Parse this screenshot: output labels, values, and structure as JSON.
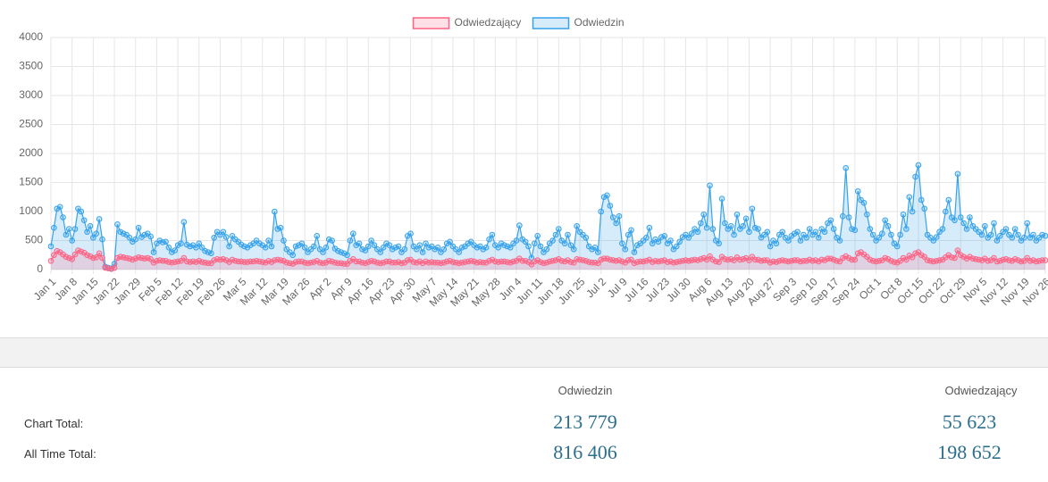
{
  "chart_data": {
    "type": "line",
    "fill": true,
    "grid": true,
    "legend": "top",
    "categories": [
      "Jan 1",
      null,
      null,
      null,
      null,
      null,
      null,
      "Jan 8",
      null,
      null,
      null,
      null,
      null,
      null,
      "Jan 15",
      null,
      null,
      null,
      null,
      null,
      null,
      "Jan 22",
      null,
      null,
      null,
      null,
      null,
      null,
      "Jan 29",
      null,
      null,
      null,
      null,
      null,
      null,
      "Feb 5",
      null,
      null,
      null,
      null,
      null,
      null,
      "Feb 12",
      null,
      null,
      null,
      null,
      null,
      null,
      "Feb 19",
      null,
      null,
      null,
      null,
      null,
      null,
      "Feb 26",
      null,
      null,
      null,
      null,
      null,
      null,
      "Mar 5",
      null,
      null,
      null,
      null,
      null,
      null,
      "Mar 12",
      null,
      null,
      null,
      null,
      null,
      null,
      "Mar 19",
      null,
      null,
      null,
      null,
      null,
      null,
      "Mar 26",
      null,
      null,
      null,
      null,
      null,
      null,
      "Apr 2",
      null,
      null,
      null,
      null,
      null,
      null,
      "Apr 9",
      null,
      null,
      null,
      null,
      null,
      null,
      "Apr 16",
      null,
      null,
      null,
      null,
      null,
      null,
      "Apr 23",
      null,
      null,
      null,
      null,
      null,
      null,
      "Apr 30",
      null,
      null,
      null,
      null,
      null,
      null,
      "May 7",
      null,
      null,
      null,
      null,
      null,
      null,
      "May 14",
      null,
      null,
      null,
      null,
      null,
      null,
      "May 21",
      null,
      null,
      null,
      null,
      null,
      null,
      "May 28",
      null,
      null,
      null,
      null,
      null,
      null,
      "Jun 4",
      null,
      null,
      null,
      null,
      null,
      null,
      "Jun 11",
      null,
      null,
      null,
      null,
      null,
      null,
      "Jun 18",
      null,
      null,
      null,
      null,
      null,
      null,
      "Jun 25",
      null,
      null,
      null,
      null,
      null,
      null,
      "Jul 2",
      null,
      null,
      null,
      null,
      null,
      null,
      "Jul 9",
      null,
      null,
      null,
      null,
      null,
      null,
      "Jul 16",
      null,
      null,
      null,
      null,
      null,
      null,
      "Jul 23",
      null,
      null,
      null,
      null,
      null,
      null,
      "Jul 30",
      null,
      null,
      null,
      null,
      null,
      null,
      "Aug 6",
      null,
      null,
      null,
      null,
      null,
      null,
      "Aug 13",
      null,
      null,
      null,
      null,
      null,
      null,
      "Aug 20",
      null,
      null,
      null,
      null,
      null,
      null,
      "Aug 27",
      null,
      null,
      null,
      null,
      null,
      null,
      "Sep 3",
      null,
      null,
      null,
      null,
      null,
      null,
      "Sep 10",
      null,
      null,
      null,
      null,
      null,
      null,
      "Sep 17",
      null,
      null,
      null,
      null,
      null,
      null,
      "Sep 24",
      null,
      null,
      null,
      null,
      null,
      null,
      "Oct 1",
      null,
      null,
      null,
      null,
      null,
      null,
      "Oct 8",
      null,
      null,
      null,
      null,
      null,
      null,
      "Oct 15",
      null,
      null,
      null,
      null,
      null,
      null,
      "Oct 22",
      null,
      null,
      null,
      null,
      null,
      null,
      "Oct 29",
      null,
      null,
      null,
      null,
      null,
      null,
      "Nov 5",
      null,
      null,
      null,
      null,
      null,
      null,
      "Nov 12",
      null,
      null,
      null,
      null,
      null,
      null,
      "Nov 19",
      null,
      null,
      null,
      null,
      null,
      null,
      "Nov 26"
    ],
    "series": [
      {
        "name": "Odwiedzający",
        "color": "#ff6384",
        "values": [
          150,
          250,
          320,
          300,
          260,
          220,
          200,
          180,
          260,
          330,
          310,
          290,
          250,
          230,
          200,
          210,
          280,
          200,
          30,
          20,
          10,
          30,
          200,
          220,
          210,
          200,
          190,
          170,
          190,
          210,
          200,
          190,
          200,
          180,
          120,
          150,
          160,
          150,
          150,
          130,
          120,
          130,
          140,
          150,
          200,
          140,
          130,
          140,
          130,
          150,
          130,
          120,
          110,
          110,
          160,
          180,
          170,
          180,
          160,
          130,
          170,
          150,
          140,
          140,
          130,
          130,
          140,
          140,
          150,
          140,
          130,
          120,
          150,
          130,
          160,
          170,
          160,
          150,
          120,
          110,
          100,
          130,
          140,
          140,
          120,
          110,
          120,
          130,
          150,
          120,
          110,
          120,
          150,
          140,
          120,
          110,
          110,
          100,
          100,
          150,
          180,
          140,
          140,
          120,
          110,
          130,
          150,
          140,
          120,
          110,
          120,
          140,
          140,
          120,
          120,
          130,
          110,
          120,
          160,
          170,
          130,
          120,
          140,
          110,
          140,
          120,
          130,
          120,
          120,
          110,
          120,
          140,
          150,
          130,
          120,
          110,
          120,
          130,
          140,
          150,
          140,
          120,
          130,
          120,
          120,
          150,
          170,
          140,
          130,
          140,
          140,
          130,
          120,
          140,
          150,
          190,
          150,
          150,
          130,
          90,
          140,
          160,
          130,
          110,
          120,
          140,
          150,
          160,
          180,
          150,
          140,
          160,
          130,
          120,
          180,
          170,
          160,
          150,
          130,
          120,
          120,
          110,
          170,
          190,
          190,
          170,
          160,
          150,
          160,
          140,
          120,
          160,
          170,
          110,
          130,
          140,
          140,
          150,
          170,
          130,
          150,
          140,
          150,
          160,
          130,
          140,
          120,
          130,
          140,
          150,
          160,
          150,
          160,
          170,
          160,
          180,
          200,
          170,
          230,
          170,
          140,
          130,
          220,
          180,
          170,
          180,
          160,
          210,
          170,
          180,
          200,
          160,
          220,
          170,
          170,
          150,
          160,
          160,
          120,
          140,
          130,
          150,
          160,
          150,
          140,
          150,
          160,
          160,
          140,
          150,
          150,
          170,
          150,
          160,
          140,
          170,
          160,
          190,
          190,
          170,
          150,
          140,
          200,
          230,
          200,
          170,
          170,
          280,
          300,
          260,
          220,
          170,
          150,
          140,
          150,
          160,
          200,
          180,
          150,
          130,
          120,
          150,
          200,
          170,
          240,
          210,
          280,
          300,
          250,
          220,
          160,
          150,
          140,
          150,
          160,
          170,
          210,
          250,
          210,
          200,
          330,
          250,
          220,
          190,
          220,
          190,
          180,
          170,
          160,
          190,
          150,
          160,
          200,
          140,
          150,
          170,
          180,
          160,
          150,
          180,
          160,
          140,
          150,
          200,
          150,
          160,
          140,
          150,
          160,
          160
        ]
      },
      {
        "name": "Odwiedzin",
        "color": "#36a2eb",
        "values": [
          400,
          720,
          1050,
          1080,
          900,
          600,
          700,
          500,
          700,
          1050,
          1000,
          850,
          650,
          750,
          550,
          620,
          870,
          520,
          50,
          30,
          20,
          100,
          780,
          650,
          620,
          600,
          550,
          480,
          520,
          720,
          560,
          600,
          620,
          570,
          300,
          450,
          500,
          470,
          480,
          380,
          300,
          330,
          420,
          450,
          820,
          430,
          400,
          420,
          380,
          450,
          380,
          320,
          300,
          280,
          550,
          650,
          600,
          650,
          560,
          400,
          580,
          520,
          480,
          430,
          400,
          380,
          420,
          450,
          500,
          450,
          420,
          380,
          500,
          400,
          1000,
          700,
          720,
          500,
          350,
          300,
          250,
          400,
          420,
          450,
          380,
          300,
          350,
          400,
          580,
          350,
          300,
          380,
          520,
          500,
          360,
          320,
          300,
          280,
          250,
          500,
          620,
          420,
          450,
          350,
          330,
          400,
          500,
          420,
          350,
          300,
          380,
          450,
          420,
          350,
          380,
          400,
          300,
          350,
          580,
          620,
          400,
          350,
          420,
          300,
          450,
          380,
          400,
          350,
          380,
          300,
          350,
          450,
          480,
          400,
          350,
          300,
          380,
          400,
          450,
          480,
          420,
          380,
          400,
          350,
          380,
          520,
          600,
          420,
          380,
          450,
          420,
          400,
          380,
          450,
          500,
          760,
          520,
          480,
          400,
          200,
          450,
          580,
          400,
          300,
          350,
          450,
          500,
          600,
          700,
          500,
          450,
          600,
          420,
          350,
          750,
          650,
          600,
          550,
          400,
          350,
          380,
          300,
          1000,
          1250,
          1280,
          1100,
          900,
          800,
          920,
          450,
          350,
          600,
          680,
          300,
          420,
          450,
          500,
          550,
          720,
          450,
          520,
          480,
          560,
          580,
          450,
          500,
          350,
          400,
          480,
          560,
          600,
          550,
          620,
          700,
          650,
          800,
          950,
          720,
          1450,
          700,
          500,
          450,
          1220,
          800,
          700,
          750,
          600,
          950,
          700,
          750,
          880,
          650,
          1050,
          720,
          700,
          550,
          600,
          650,
          400,
          500,
          450,
          600,
          650,
          550,
          500,
          580,
          620,
          650,
          500,
          600,
          550,
          700,
          600,
          650,
          550,
          700,
          650,
          800,
          850,
          700,
          550,
          500,
          920,
          1750,
          900,
          700,
          680,
          1350,
          1200,
          1150,
          950,
          700,
          600,
          500,
          550,
          620,
          850,
          750,
          600,
          450,
          400,
          600,
          950,
          700,
          1250,
          1000,
          1600,
          1800,
          1200,
          1050,
          600,
          550,
          500,
          560,
          650,
          700,
          1000,
          1200,
          900,
          850,
          1650,
          900,
          800,
          700,
          900,
          750,
          700,
          650,
          600,
          750,
          550,
          600,
          800,
          500,
          580,
          650,
          700,
          600,
          550,
          700,
          600,
          500,
          550,
          800,
          550,
          600,
          500,
          550,
          600,
          580
        ]
      }
    ],
    "ylim": [
      0,
      4000
    ],
    "yticks": [
      0,
      500,
      1000,
      1500,
      2000,
      2500,
      3000,
      3500,
      4000
    ]
  },
  "table": {
    "columns": [
      "Odwiedzin",
      "Odwiedzający"
    ],
    "rows": [
      {
        "label": "Chart Total:",
        "values": [
          "213 779",
          "55 623"
        ]
      },
      {
        "label": "All Time Total:",
        "values": [
          "816 406",
          "198 652"
        ]
      }
    ]
  }
}
